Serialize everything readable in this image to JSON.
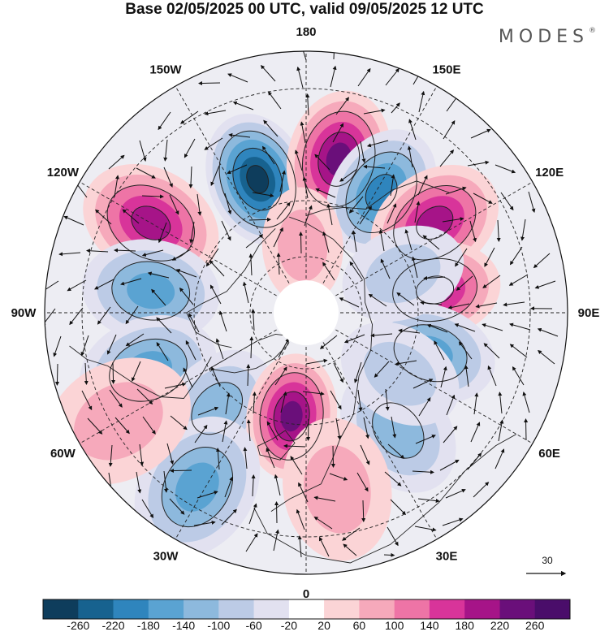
{
  "title": "Base 02/05/2025 00 UTC, valid 09/05/2025 12 UTC",
  "brand": {
    "name": "MODES",
    "mark": "®"
  },
  "longitude_labels": [
    "180",
    "150E",
    "120E",
    "90E",
    "60E",
    "30E",
    "0",
    "30W",
    "60W",
    "90W",
    "120W",
    "150W"
  ],
  "reference_vector": {
    "label": "30"
  },
  "colorbar": {
    "levels": [
      "-260",
      "-220",
      "-180",
      "-140",
      "-100",
      "-60",
      "-20",
      "20",
      "60",
      "100",
      "140",
      "180",
      "220",
      "260"
    ],
    "colors": [
      "#0e3d5c",
      "#17628f",
      "#2f85bd",
      "#5aa3d2",
      "#8db9dd",
      "#bccbe6",
      "#e2e1f0",
      "#ffffff",
      "#fbd4d6",
      "#f6a9bb",
      "#ee74a6",
      "#d8349a",
      "#a61488",
      "#6a0f7a",
      "#4a0d6a"
    ]
  },
  "anomalies": [
    {
      "lon": 200,
      "lat": 52,
      "value": -250
    },
    {
      "lon": 168,
      "lat": 48,
      "value": 200
    },
    {
      "lon": 148,
      "lat": 52,
      "value": -180
    },
    {
      "lon": 125,
      "lat": 48,
      "value": 160
    },
    {
      "lon": 240,
      "lat": 42,
      "value": 180
    },
    {
      "lon": 262,
      "lat": 48,
      "value": -120
    },
    {
      "lon": 100,
      "lat": 55,
      "value": 170
    },
    {
      "lon": 72,
      "lat": 55,
      "value": -130
    },
    {
      "lon": 290,
      "lat": 45,
      "value": -120
    },
    {
      "lon": 317,
      "lat": 55,
      "value": -110
    },
    {
      "lon": 352,
      "lat": 62,
      "value": 200
    },
    {
      "lon": 328,
      "lat": 35,
      "value": -120
    },
    {
      "lon": 38,
      "lat": 50,
      "value": -80
    },
    {
      "lon": 10,
      "lat": 42,
      "value": 60
    },
    {
      "lon": 57,
      "lat": 60,
      "value": -60
    },
    {
      "lon": 300,
      "lat": 32,
      "value": 60
    },
    {
      "lon": 112,
      "lat": 62,
      "value": -60
    },
    {
      "lon": 183,
      "lat": 72,
      "value": 40
    }
  ]
}
